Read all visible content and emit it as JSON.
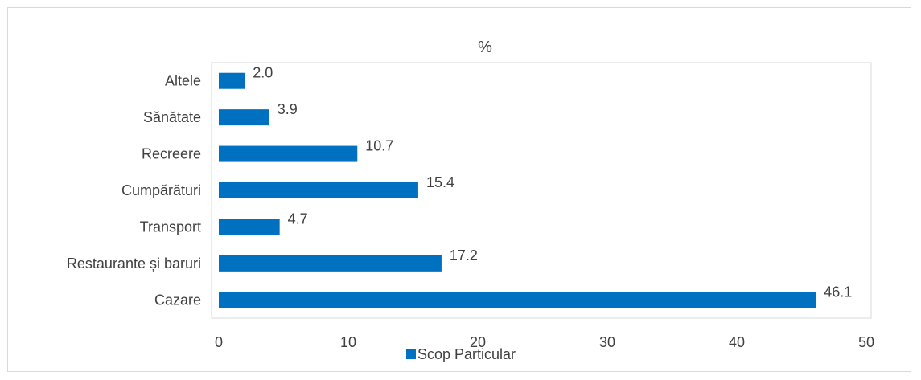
{
  "chart_data": {
    "type": "bar",
    "orientation": "horizontal",
    "title": "%",
    "categories": [
      "Cazare",
      "Restaurante și baruri",
      "Transport",
      "Cumpărături",
      "Recreere",
      "Sănătate",
      "Altele"
    ],
    "series": [
      {
        "name": "Scop Particular",
        "values": [
          46.1,
          17.2,
          4.7,
          15.4,
          10.7,
          3.9,
          2.0
        ],
        "color": "#0070c0"
      }
    ],
    "value_labels": [
      "46.1",
      "17.2",
      "4.7",
      "15.4",
      "10.7",
      "3.9",
      "2.0"
    ],
    "xlim": [
      0,
      50
    ],
    "xticks": [
      0,
      10,
      20,
      30,
      40,
      50
    ],
    "grid": false,
    "legend_position": "bottom"
  }
}
